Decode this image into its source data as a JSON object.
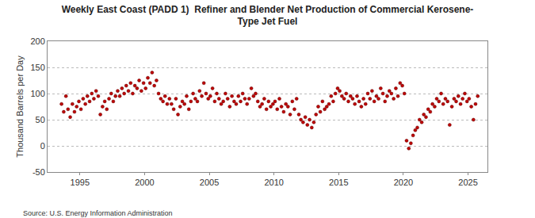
{
  "chart_data": {
    "type": "scatter",
    "title": "Weekly East Coast (PADD 1)  Refiner and Blender Net Production of Commercial Kerosene-\nType Jet Fuel",
    "y_label": "Thousand Barrels per Day",
    "source": "Source: U.S. Energy Information Administration",
    "color": "#c00000",
    "marker": "circle",
    "grid": true,
    "xlim": [
      1992.5,
      2026.5
    ],
    "xticks": [
      1995,
      2000,
      2005,
      2010,
      2015,
      2020,
      2025
    ],
    "ylim": [
      -50,
      200
    ],
    "yticks": [
      -50,
      0,
      50,
      100,
      150,
      200
    ],
    "x": [
      1993.58,
      1993.75,
      1993.92,
      1994.08,
      1994.25,
      1994.42,
      1994.58,
      1994.75,
      1994.92,
      1995.08,
      1995.25,
      1995.42,
      1995.58,
      1995.75,
      1995.92,
      1996.08,
      1996.25,
      1996.42,
      1996.58,
      1996.75,
      1996.92,
      1997.08,
      1997.25,
      1997.42,
      1997.58,
      1997.75,
      1997.92,
      1998.08,
      1998.25,
      1998.42,
      1998.58,
      1998.75,
      1998.92,
      1999.08,
      1999.25,
      1999.42,
      1999.58,
      1999.75,
      1999.92,
      2000.08,
      2000.25,
      2000.42,
      2000.58,
      2000.75,
      2000.92,
      2001.08,
      2001.25,
      2001.42,
      2001.58,
      2001.75,
      2001.92,
      2002.08,
      2002.25,
      2002.42,
      2002.58,
      2002.75,
      2002.92,
      2003.08,
      2003.25,
      2003.42,
      2003.58,
      2003.75,
      2003.92,
      2004.08,
      2004.25,
      2004.42,
      2004.58,
      2004.75,
      2004.92,
      2005.08,
      2005.25,
      2005.42,
      2005.58,
      2005.75,
      2005.92,
      2006.08,
      2006.25,
      2006.42,
      2006.58,
      2006.75,
      2006.92,
      2007.08,
      2007.25,
      2007.42,
      2007.58,
      2007.75,
      2007.92,
      2008.08,
      2008.25,
      2008.42,
      2008.58,
      2008.75,
      2008.92,
      2009.08,
      2009.25,
      2009.42,
      2009.58,
      2009.75,
      2009.92,
      2010.08,
      2010.25,
      2010.42,
      2010.58,
      2010.75,
      2010.92,
      2011.08,
      2011.25,
      2011.42,
      2011.58,
      2011.75,
      2011.92,
      2012.08,
      2012.25,
      2012.42,
      2012.58,
      2012.75,
      2012.92,
      2013.08,
      2013.25,
      2013.42,
      2013.58,
      2013.75,
      2013.92,
      2014.08,
      2014.25,
      2014.42,
      2014.58,
      2014.75,
      2014.92,
      2015.08,
      2015.25,
      2015.42,
      2015.58,
      2015.75,
      2015.92,
      2016.08,
      2016.25,
      2016.42,
      2016.58,
      2016.75,
      2016.92,
      2017.08,
      2017.25,
      2017.42,
      2017.58,
      2017.75,
      2017.92,
      2018.08,
      2018.25,
      2018.42,
      2018.58,
      2018.75,
      2018.92,
      2019.08,
      2019.25,
      2019.42,
      2019.58,
      2019.75,
      2019.92,
      2020.08,
      2020.25,
      2020.42,
      2020.58,
      2020.75,
      2020.92,
      2021.08,
      2021.25,
      2021.42,
      2021.58,
      2021.75,
      2021.92,
      2022.08,
      2022.25,
      2022.42,
      2022.58,
      2022.75,
      2022.92,
      2023.08,
      2023.25,
      2023.42,
      2023.58,
      2023.75,
      2023.92,
      2024.08,
      2024.25,
      2024.42,
      2024.58,
      2024.75,
      2024.92,
      2025.08,
      2025.25,
      2025.42,
      2025.58,
      2025.75
    ],
    "values": [
      80,
      65,
      95,
      70,
      55,
      80,
      65,
      75,
      85,
      70,
      90,
      80,
      95,
      85,
      100,
      90,
      105,
      95,
      60,
      75,
      85,
      70,
      90,
      100,
      85,
      95,
      105,
      95,
      110,
      100,
      115,
      105,
      120,
      100,
      115,
      110,
      125,
      105,
      120,
      110,
      130,
      120,
      140,
      115,
      125,
      100,
      90,
      85,
      95,
      80,
      90,
      80,
      70,
      90,
      60,
      75,
      85,
      80,
      95,
      70,
      85,
      100,
      90,
      85,
      105,
      95,
      120,
      100,
      90,
      95,
      110,
      85,
      100,
      90,
      80,
      85,
      100,
      90,
      75,
      95,
      85,
      80,
      95,
      85,
      100,
      90,
      80,
      90,
      110,
      95,
      100,
      85,
      75,
      80,
      90,
      70,
      85,
      75,
      80,
      85,
      70,
      90,
      75,
      65,
      80,
      75,
      60,
      85,
      70,
      90,
      60,
      50,
      45,
      55,
      40,
      50,
      35,
      45,
      60,
      75,
      65,
      85,
      70,
      75,
      80,
      95,
      85,
      100,
      110,
      105,
      95,
      90,
      100,
      85,
      95,
      90,
      80,
      95,
      85,
      75,
      90,
      80,
      100,
      90,
      105,
      85,
      95,
      90,
      110,
      100,
      85,
      95,
      105,
      100,
      90,
      110,
      95,
      120,
      115,
      100,
      10,
      -5,
      5,
      20,
      30,
      35,
      50,
      45,
      60,
      55,
      70,
      65,
      80,
      75,
      90,
      85,
      100,
      80,
      90,
      85,
      40,
      75,
      90,
      85,
      95,
      80,
      90,
      100,
      85,
      90,
      75,
      50,
      80,
      95
    ]
  }
}
